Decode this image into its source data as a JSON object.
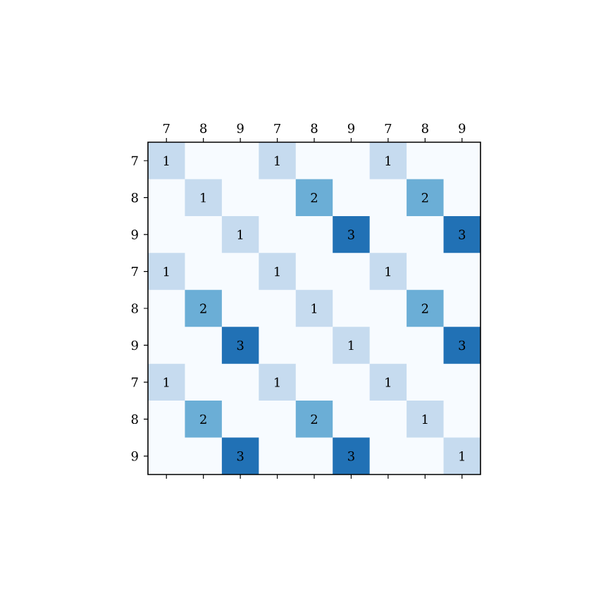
{
  "chart_data": {
    "type": "heatmap",
    "data_labels": true,
    "categories": [
      "7",
      "8",
      "9",
      "7",
      "8",
      "9",
      "7",
      "8",
      "9"
    ],
    "y_categories": [
      "7",
      "8",
      "9",
      "7",
      "8",
      "9",
      "7",
      "8",
      "9"
    ],
    "cells": [
      [
        1,
        null,
        null,
        1,
        null,
        null,
        1,
        null,
        null
      ],
      [
        null,
        1,
        null,
        null,
        2,
        null,
        null,
        2,
        null
      ],
      [
        null,
        null,
        1,
        null,
        null,
        3,
        null,
        null,
        3
      ],
      [
        1,
        null,
        null,
        1,
        null,
        null,
        1,
        null,
        null
      ],
      [
        null,
        2,
        null,
        null,
        1,
        null,
        null,
        2,
        null
      ],
      [
        null,
        null,
        3,
        null,
        null,
        1,
        null,
        null,
        3
      ],
      [
        1,
        null,
        null,
        1,
        null,
        null,
        1,
        null,
        null
      ],
      [
        null,
        2,
        null,
        null,
        2,
        null,
        null,
        1,
        null
      ],
      [
        null,
        null,
        3,
        null,
        null,
        3,
        null,
        null,
        1
      ]
    ]
  }
}
